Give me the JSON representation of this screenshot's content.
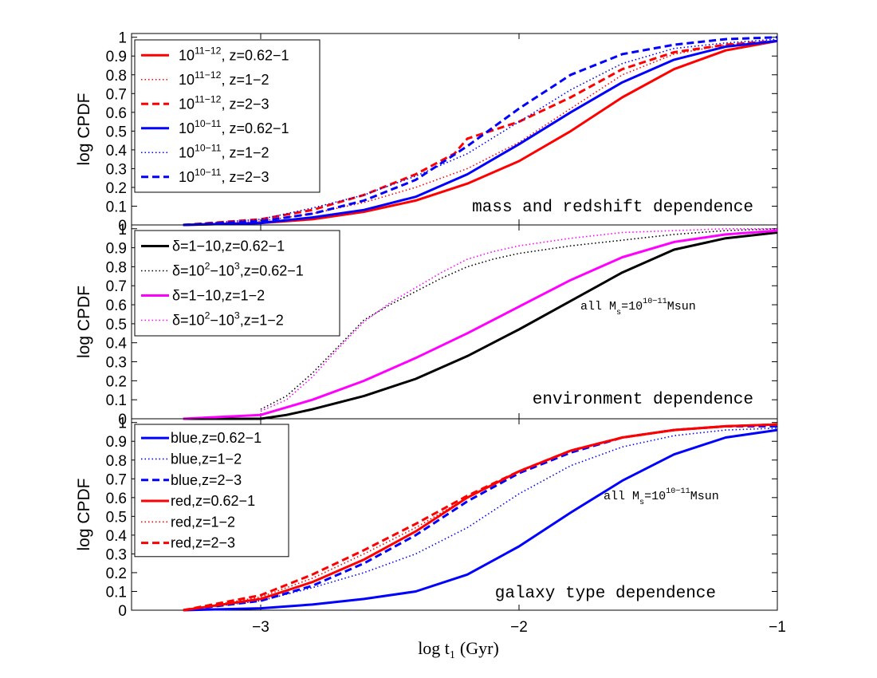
{
  "figure": {
    "xlabel": "log t",
    "xlabel_sub": "1",
    "xlabel_unit": "(Gyr)",
    "x_ticks": [
      "−3",
      "−2",
      "−1"
    ],
    "y_ticks": [
      "0",
      "0.1",
      "0.2",
      "0.3",
      "0.4",
      "0.5",
      "0.6",
      "0.7",
      "0.8",
      "0.9",
      "1"
    ]
  },
  "chart_data": [
    {
      "type": "line",
      "title": "mass and redshift dependence",
      "ylabel": "log CPDF",
      "xlim": [
        -3.5,
        -1.0
      ],
      "ylim": [
        0,
        1.02
      ],
      "legend": "top-left",
      "series": [
        {
          "name": "10^11−12, z=0.62−1",
          "label_base": "10",
          "label_exp": "11−12",
          "label_tail": ", z=0.62−1",
          "color": "#ff0000",
          "style": "solid",
          "x": [
            -3.3,
            -3.0,
            -2.8,
            -2.6,
            -2.4,
            -2.2,
            -2.0,
            -1.8,
            -1.6,
            -1.4,
            -1.2,
            -1.0
          ],
          "y": [
            0.0,
            0.01,
            0.03,
            0.07,
            0.13,
            0.22,
            0.34,
            0.5,
            0.68,
            0.83,
            0.93,
            0.98
          ]
        },
        {
          "name": "10^11−12, z=1−2",
          "label_base": "10",
          "label_exp": "11−12",
          "label_tail": ", z=1−2",
          "color": "#ff0000",
          "style": "dotted",
          "x": [
            -3.3,
            -3.0,
            -2.8,
            -2.6,
            -2.4,
            -2.2,
            -2.0,
            -1.8,
            -1.6,
            -1.4,
            -1.2,
            -1.0
          ],
          "y": [
            0.0,
            0.02,
            0.06,
            0.12,
            0.2,
            0.3,
            0.44,
            0.62,
            0.8,
            0.91,
            0.96,
            0.98
          ]
        },
        {
          "name": "10^11−12, z=2−3",
          "label_base": "10",
          "label_exp": "11−12",
          "label_tail": ", z=2−3",
          "color": "#ff0000",
          "style": "dashed",
          "x": [
            -3.3,
            -3.0,
            -2.8,
            -2.6,
            -2.4,
            -2.25,
            -2.2,
            -2.0,
            -1.8,
            -1.6,
            -1.4,
            -1.2,
            -1.0
          ],
          "y": [
            0.0,
            0.03,
            0.08,
            0.16,
            0.27,
            0.38,
            0.46,
            0.55,
            0.68,
            0.83,
            0.92,
            0.96,
            0.98
          ]
        },
        {
          "name": "10^10−11, z=0.62−1",
          "label_base": "10",
          "label_exp": "10−11",
          "label_tail": ", z=0.62−1",
          "color": "#0000ff",
          "style": "solid",
          "x": [
            -3.3,
            -3.0,
            -2.8,
            -2.6,
            -2.4,
            -2.2,
            -2.0,
            -1.8,
            -1.6,
            -1.4,
            -1.2,
            -1.0
          ],
          "y": [
            0.0,
            0.01,
            0.04,
            0.08,
            0.15,
            0.27,
            0.43,
            0.6,
            0.76,
            0.88,
            0.95,
            0.98
          ]
        },
        {
          "name": "10^10−11, z=1−2",
          "label_base": "10",
          "label_exp": "10−11",
          "label_tail": ", z=1−2",
          "color": "#0000ff",
          "style": "dotted",
          "x": [
            -3.3,
            -3.0,
            -2.8,
            -2.6,
            -2.4,
            -2.2,
            -2.0,
            -1.8,
            -1.6,
            -1.4,
            -1.2,
            -1.0
          ],
          "y": [
            0.0,
            0.03,
            0.09,
            0.16,
            0.26,
            0.38,
            0.55,
            0.72,
            0.86,
            0.94,
            0.97,
            0.99
          ]
        },
        {
          "name": "10^10−11, z=2−3",
          "label_base": "10",
          "label_exp": "10−11",
          "label_tail": ", z=2−3",
          "color": "#0000ff",
          "style": "dashed",
          "x": [
            -3.3,
            -3.0,
            -2.8,
            -2.6,
            -2.4,
            -2.2,
            -2.0,
            -1.8,
            -1.6,
            -1.4,
            -1.2,
            -1.0
          ],
          "y": [
            0.0,
            0.02,
            0.06,
            0.13,
            0.24,
            0.42,
            0.62,
            0.8,
            0.91,
            0.96,
            0.99,
            1.0
          ]
        }
      ]
    },
    {
      "type": "line",
      "title": "environment dependence",
      "ylabel": "log CPDF",
      "annotation_prefix": "all M",
      "annotation_sub": "s",
      "annotation_mid": "=10",
      "annotation_exp": "10−11",
      "annotation_suffix": "Msun",
      "xlim": [
        -3.5,
        -1.0
      ],
      "ylim": [
        0,
        1.02
      ],
      "legend": "top-left",
      "series": [
        {
          "name": "δ=1−10,z=0.62−1",
          "label_base": "δ=1−10,z=0.62−1",
          "label_exp": "",
          "label_tail": "",
          "color": "#000000",
          "style": "solid",
          "x": [
            -3.3,
            -3.0,
            -2.9,
            -2.8,
            -2.6,
            -2.4,
            -2.2,
            -2.0,
            -1.8,
            -1.6,
            -1.4,
            -1.2,
            -1.0
          ],
          "y": [
            0.0,
            0.0,
            0.02,
            0.05,
            0.12,
            0.21,
            0.33,
            0.47,
            0.62,
            0.77,
            0.89,
            0.95,
            0.98
          ]
        },
        {
          "name": "δ=10^2−10^3,z=0.62−1",
          "label_base": "δ=10",
          "label_exp": "2",
          "label_mid": "−10",
          "label_exp2": "3",
          "label_tail": ",z=0.62−1",
          "color": "#000000",
          "style": "dotted",
          "x": [
            -3.0,
            -2.9,
            -2.8,
            -2.7,
            -2.6,
            -2.5,
            -2.4,
            -2.3,
            -2.2,
            -2.1,
            -2.0,
            -1.8,
            -1.6,
            -1.4,
            -1.2,
            -1.0
          ],
          "y": [
            0.05,
            0.12,
            0.24,
            0.38,
            0.52,
            0.6,
            0.67,
            0.74,
            0.8,
            0.84,
            0.87,
            0.91,
            0.94,
            0.97,
            0.99,
            1.0
          ]
        },
        {
          "name": "δ=1−10,z=1−2",
          "label_base": "δ=1−10,z=1−2",
          "label_exp": "",
          "label_tail": "",
          "color": "#ff00ff",
          "style": "solid",
          "x": [
            -3.3,
            -3.0,
            -2.8,
            -2.6,
            -2.4,
            -2.2,
            -2.0,
            -1.8,
            -1.6,
            -1.4,
            -1.2,
            -1.0
          ],
          "y": [
            0.0,
            0.02,
            0.1,
            0.2,
            0.32,
            0.45,
            0.59,
            0.73,
            0.85,
            0.93,
            0.97,
            0.99
          ]
        },
        {
          "name": "δ=10^2−10^3,z=1−2",
          "label_base": "δ=10",
          "label_exp": "2",
          "label_mid": "−10",
          "label_exp2": "3",
          "label_tail": ",z=1−2",
          "color": "#ff00ff",
          "style": "dotted",
          "x": [
            -3.0,
            -2.9,
            -2.8,
            -2.7,
            -2.6,
            -2.5,
            -2.4,
            -2.3,
            -2.2,
            -2.1,
            -2.0,
            -1.8,
            -1.6,
            -1.4,
            -1.2,
            -1.0
          ],
          "y": [
            0.04,
            0.1,
            0.22,
            0.37,
            0.51,
            0.61,
            0.69,
            0.77,
            0.84,
            0.88,
            0.91,
            0.95,
            0.98,
            0.99,
            1.0,
            1.0
          ]
        }
      ]
    },
    {
      "type": "line",
      "title": "galaxy type dependence",
      "ylabel": "log CPDF",
      "annotation_prefix": "all M",
      "annotation_sub": "s",
      "annotation_mid": "=10",
      "annotation_exp": "10−11",
      "annotation_suffix": "Msun",
      "xlim": [
        -3.5,
        -1.0
      ],
      "ylim": [
        0,
        1.02
      ],
      "legend": "top-left",
      "series": [
        {
          "name": "blue,z=0.62−1",
          "label_base": "blue,z=0.62−1",
          "label_exp": "",
          "label_tail": "",
          "color": "#0000ff",
          "style": "solid",
          "x": [
            -3.3,
            -3.0,
            -2.8,
            -2.6,
            -2.4,
            -2.2,
            -2.0,
            -1.8,
            -1.6,
            -1.4,
            -1.2,
            -1.0
          ],
          "y": [
            0.0,
            0.01,
            0.03,
            0.06,
            0.1,
            0.19,
            0.34,
            0.52,
            0.69,
            0.83,
            0.92,
            0.96
          ]
        },
        {
          "name": "blue,z=1−2",
          "label_base": "blue,z=1−2",
          "label_exp": "",
          "label_tail": "",
          "color": "#0000ff",
          "style": "dotted",
          "x": [
            -3.3,
            -3.0,
            -2.8,
            -2.6,
            -2.4,
            -2.2,
            -2.0,
            -1.8,
            -1.6,
            -1.4,
            -1.2,
            -1.0
          ],
          "y": [
            0.0,
            0.05,
            0.12,
            0.2,
            0.3,
            0.44,
            0.62,
            0.77,
            0.87,
            0.93,
            0.96,
            0.97
          ]
        },
        {
          "name": "blue,z=2−3",
          "label_base": "blue,z=2−3",
          "label_exp": "",
          "label_tail": "",
          "color": "#0000ff",
          "style": "dashed",
          "x": [
            -3.3,
            -3.0,
            -2.8,
            -2.6,
            -2.4,
            -2.2,
            -2.0,
            -1.8,
            -1.6,
            -1.4,
            -1.2,
            -1.0
          ],
          "y": [
            0.0,
            0.05,
            0.13,
            0.25,
            0.4,
            0.58,
            0.73,
            0.84,
            0.92,
            0.96,
            0.98,
            0.98
          ]
        },
        {
          "name": "red,z=0.62−1",
          "label_base": "red,z=0.62−1",
          "label_exp": "",
          "label_tail": "",
          "color": "#ff0000",
          "style": "solid",
          "x": [
            -3.3,
            -3.0,
            -2.8,
            -2.6,
            -2.4,
            -2.2,
            -2.0,
            -1.8,
            -1.6,
            -1.4,
            -1.2,
            -1.0
          ],
          "y": [
            0.0,
            0.06,
            0.15,
            0.27,
            0.42,
            0.6,
            0.74,
            0.85,
            0.92,
            0.96,
            0.98,
            0.99
          ]
        },
        {
          "name": "red,z=1−2",
          "label_base": "red,z=1−2",
          "label_exp": "",
          "label_tail": "",
          "color": "#ff0000",
          "style": "dotted",
          "x": [
            -3.3,
            -3.0,
            -2.8,
            -2.6,
            -2.4,
            -2.2,
            -2.0,
            -1.8,
            -1.6,
            -1.4,
            -1.2,
            -1.0
          ],
          "y": [
            0.0,
            0.07,
            0.17,
            0.3,
            0.44,
            0.6,
            0.74,
            0.85,
            0.92,
            0.96,
            0.98,
            0.99
          ]
        },
        {
          "name": "red,z=2−3",
          "label_base": "red,z=2−3",
          "label_exp": "",
          "label_tail": "",
          "color": "#ff0000",
          "style": "dashed",
          "x": [
            -3.3,
            -3.0,
            -2.8,
            -2.6,
            -2.4,
            -2.2,
            -2.0,
            -1.8,
            -1.6,
            -1.4,
            -1.2,
            -1.0
          ],
          "y": [
            0.0,
            0.08,
            0.19,
            0.32,
            0.46,
            0.61,
            0.74,
            0.85,
            0.92,
            0.96,
            0.98,
            0.99
          ]
        }
      ]
    }
  ]
}
